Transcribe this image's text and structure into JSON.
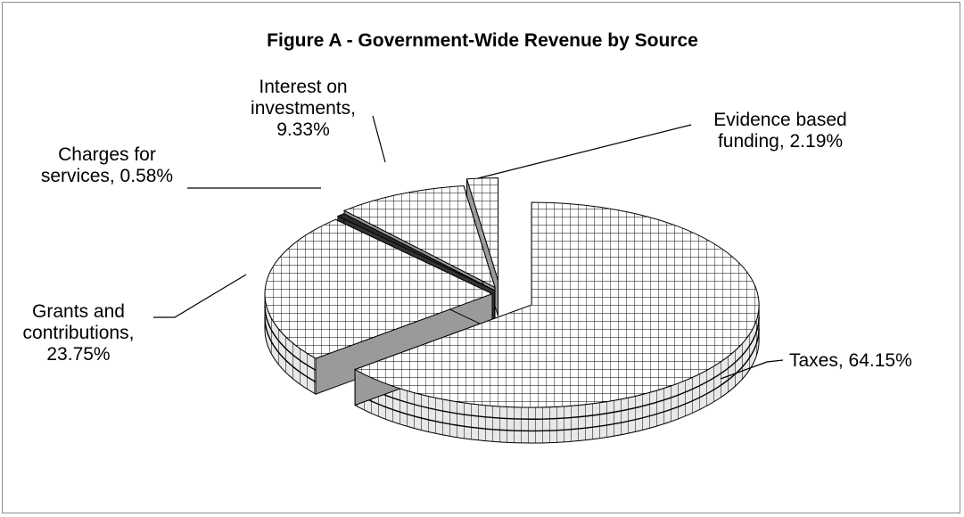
{
  "chart_data": {
    "type": "pie",
    "title": "Figure A - Government-Wide Revenue by Source",
    "slices": [
      {
        "name": "Taxes",
        "value": 64.15,
        "label_lines": [
          "Taxes, 64.15%"
        ]
      },
      {
        "name": "Grants and contributions",
        "value": 23.75,
        "label_lines": [
          "Grants and",
          "contributions,",
          "23.75%"
        ]
      },
      {
        "name": "Charges for services",
        "value": 0.58,
        "label_lines": [
          "Charges for",
          "services, 0.58%"
        ]
      },
      {
        "name": "Interest on investments",
        "value": 9.33,
        "label_lines": [
          "Interest on",
          "investments,",
          "9.33%"
        ]
      },
      {
        "name": "Evidence based funding",
        "value": 2.19,
        "label_lines": [
          "Evidence based",
          "funding, 2.19%"
        ]
      }
    ],
    "exploded": true,
    "style": "3d-pie-hatched"
  }
}
